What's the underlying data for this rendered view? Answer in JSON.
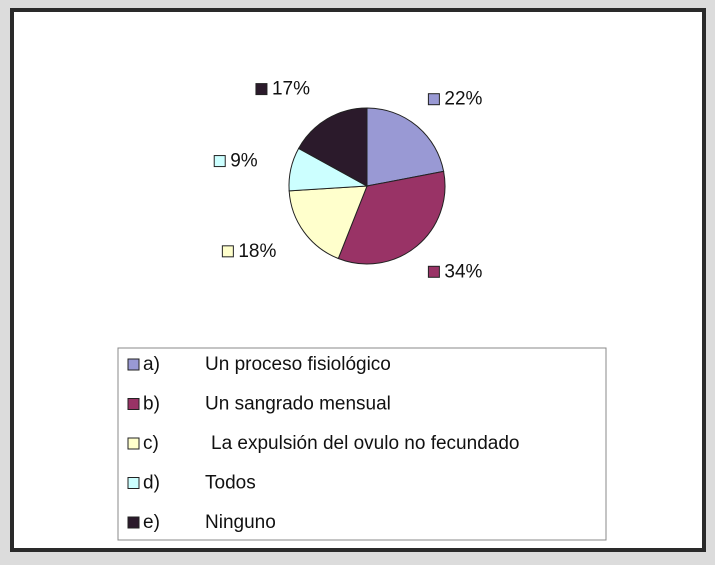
{
  "chart_data": {
    "type": "pie",
    "category_keys": [
      "a)",
      "b)",
      "c)",
      "d)",
      "e)"
    ],
    "categories": [
      "Un proceso fisiológico",
      "Un sangrado mensual",
      "La expulsión del ovulo no fecundado",
      "Todos",
      "Ninguno"
    ],
    "values": [
      22,
      34,
      18,
      9,
      17
    ],
    "value_labels": [
      "22%",
      "34%",
      "18%",
      "9%",
      "17%"
    ],
    "colors": [
      "#9999d4",
      "#993366",
      "#ffffcc",
      "#ccffff",
      "#2b1a2b"
    ]
  }
}
